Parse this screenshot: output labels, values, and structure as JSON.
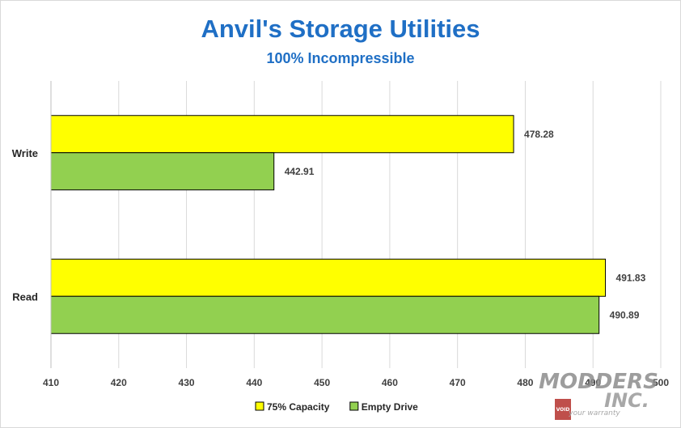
{
  "chart_data": {
    "type": "bar",
    "orientation": "horizontal",
    "title": "Anvil's Storage Utilities",
    "subtitle": "100% Incompressible",
    "categories": [
      "Write",
      "Read"
    ],
    "series": [
      {
        "name": "75% Capacity",
        "color": "#ffff00",
        "values": [
          478.28,
          491.83
        ]
      },
      {
        "name": "Empty Drive",
        "color": "#92d050",
        "values": [
          442.91,
          490.89
        ]
      }
    ],
    "xlim": [
      410,
      500
    ],
    "xticks": [
      410,
      420,
      430,
      440,
      450,
      460,
      470,
      480,
      490,
      500
    ],
    "grid": true,
    "legend": "bottom",
    "data_labels": true
  },
  "watermark": {
    "text_top": "MODDERS",
    "text_bottom": "INC.",
    "tagline": "your warranty",
    "badge": "VOID"
  }
}
